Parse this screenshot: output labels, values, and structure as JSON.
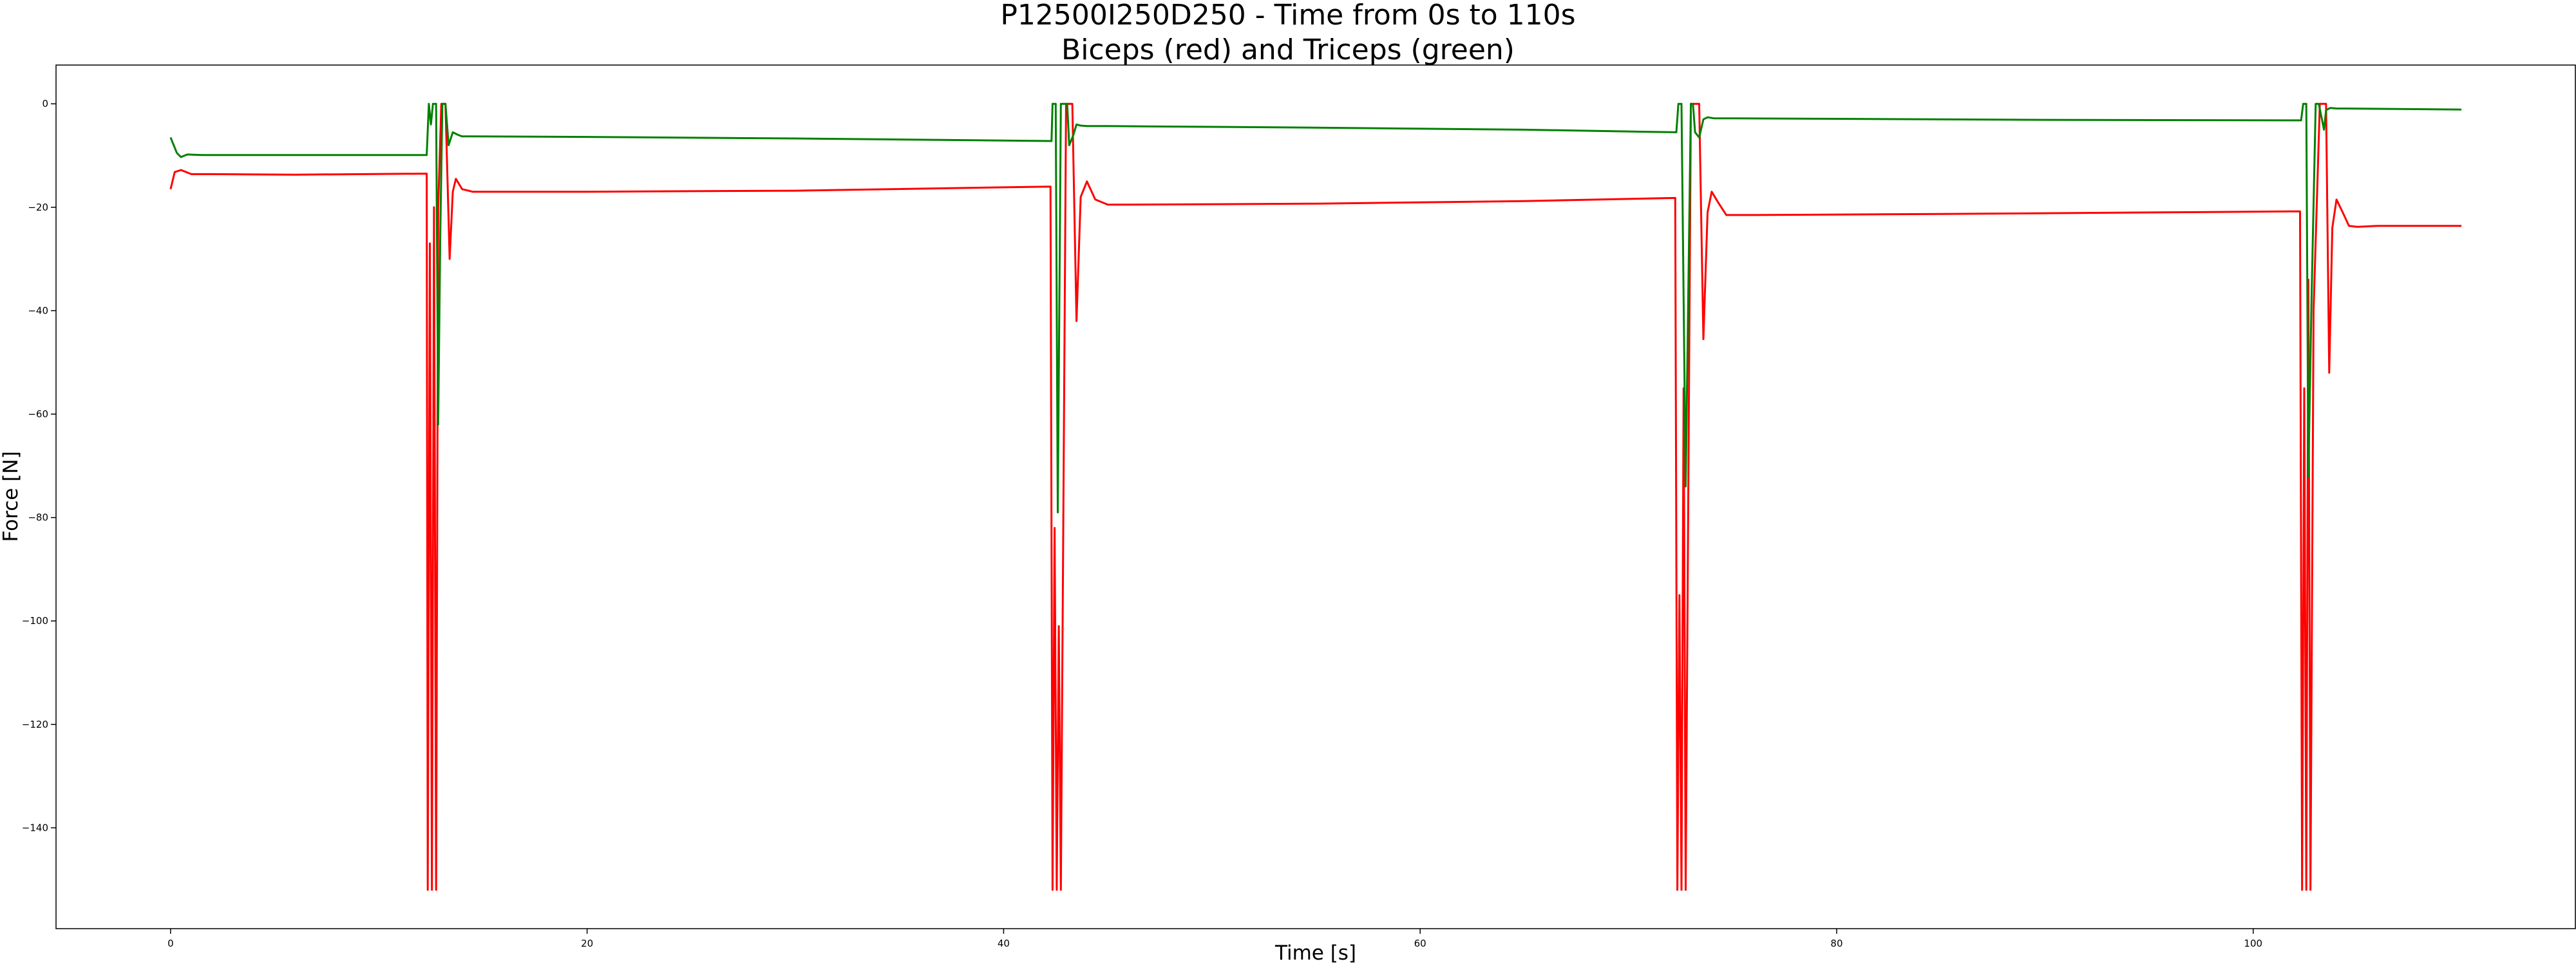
{
  "chart_data": {
    "type": "line",
    "title": "P12500I250D250 - Time from 0s to 110s",
    "subtitle": "Biceps (red) and Triceps (green)",
    "xlabel": "Time [s]",
    "ylabel": "Force [N]",
    "xlim": [
      -5.5,
      115.5
    ],
    "ylim": [
      -159.5,
      7.5
    ],
    "x_ticks": [
      0,
      20,
      40,
      60,
      80,
      100
    ],
    "y_ticks": [
      0,
      -20,
      -40,
      -60,
      -80,
      -100,
      -120,
      -140
    ],
    "x_tick_labels": [
      "0",
      "20",
      "40",
      "60",
      "80",
      "100"
    ],
    "y_tick_labels": [
      "0",
      "−20",
      "−40",
      "−60",
      "−80",
      "−100",
      "−120",
      "−140"
    ],
    "grid": false,
    "legend": "none",
    "series": [
      {
        "color": "#ff0000",
        "x": [
          0,
          0.2,
          0.5,
          1.0,
          2.0,
          6.0,
          12.3,
          12.35,
          12.45,
          12.55,
          12.65,
          12.75,
          12.85,
          13.0,
          13.2,
          13.4,
          13.55,
          13.7,
          14.0,
          14.5,
          15.5,
          20,
          30,
          42.25,
          42.35,
          42.45,
          42.55,
          42.65,
          42.75,
          43.0,
          43.3,
          43.5,
          43.7,
          44.0,
          44.4,
          45.0,
          46,
          55,
          65,
          72.25,
          72.35,
          72.45,
          72.55,
          72.65,
          72.75,
          73.0,
          73.4,
          73.6,
          73.8,
          74.0,
          74.3,
          74.7,
          75.2,
          76,
          85,
          95,
          102.25,
          102.35,
          102.45,
          102.55,
          102.65,
          102.75,
          102.9,
          103.2,
          103.5,
          103.65,
          103.8,
          104.0,
          104.3,
          104.6,
          105,
          106,
          110
        ],
        "values": [
          -16.5,
          -13.2,
          -12.8,
          -13.6,
          -13.6,
          -13.7,
          -13.5,
          -152,
          -27,
          -152,
          -20,
          -152,
          -20,
          0,
          0,
          -30,
          -17,
          -14.5,
          -16.5,
          -17,
          -17,
          -17,
          -16.8,
          -16,
          -152,
          -82,
          -152,
          -101,
          -152,
          0,
          0,
          -42,
          -18,
          -15,
          -18.5,
          -19.5,
          -19.5,
          -19.3,
          -18.8,
          -18.2,
          -152,
          -95,
          -152,
          -55,
          -152,
          0,
          0,
          -45.5,
          -21,
          -17,
          -19,
          -21.5,
          -21.5,
          -21.5,
          -21.3,
          -21,
          -20.8,
          -152,
          -55,
          -152,
          -34,
          -152,
          -40,
          0,
          0,
          -52,
          -24,
          -18.5,
          -21,
          -23.6,
          -23.8,
          -23.6,
          -23.6
        ]
      },
      {
        "color": "#008000",
        "x": [
          0,
          0.3,
          0.5,
          0.8,
          1.5,
          4,
          8,
          12.3,
          12.4,
          12.5,
          12.6,
          12.75,
          12.85,
          12.95,
          13.05,
          13.2,
          13.35,
          13.55,
          13.8,
          14.0,
          14.5,
          20,
          30,
          42.3,
          42.35,
          42.5,
          42.6,
          42.75,
          43.0,
          43.05,
          43.15,
          43.35,
          43.5,
          43.7,
          44.0,
          45.0,
          55,
          65,
          72.3,
          72.4,
          72.55,
          72.75,
          73.0,
          73.1,
          73.2,
          73.4,
          73.6,
          73.8,
          74.1,
          74.6,
          75.0,
          80,
          90,
          102.3,
          102.4,
          102.55,
          102.65,
          102.8,
          103.0,
          103.15,
          103.4,
          103.5,
          103.7,
          104.0,
          104.5,
          110
        ],
        "values": [
          -6.5,
          -9.5,
          -10.3,
          -9.8,
          -9.9,
          -9.9,
          -9.9,
          -9.9,
          0,
          -4,
          0,
          0,
          -62,
          -25,
          0,
          0,
          -8,
          -5.5,
          -6,
          -6.3,
          -6.3,
          -6.4,
          -6.7,
          -7.2,
          0,
          0,
          -79,
          0,
          0,
          0,
          -8,
          -6,
          -4,
          -4.2,
          -4.3,
          -4.3,
          -4.6,
          -5,
          -5.5,
          0,
          0,
          -74,
          0,
          0,
          -5.5,
          -6.5,
          -3,
          -2.6,
          -2.8,
          -2.8,
          -2.8,
          -2.9,
          -3.1,
          -3.2,
          0,
          0,
          -72,
          -38,
          0,
          0,
          -5,
          -1.2,
          -0.8,
          -0.9,
          -0.9,
          -1.1
        ]
      }
    ]
  }
}
